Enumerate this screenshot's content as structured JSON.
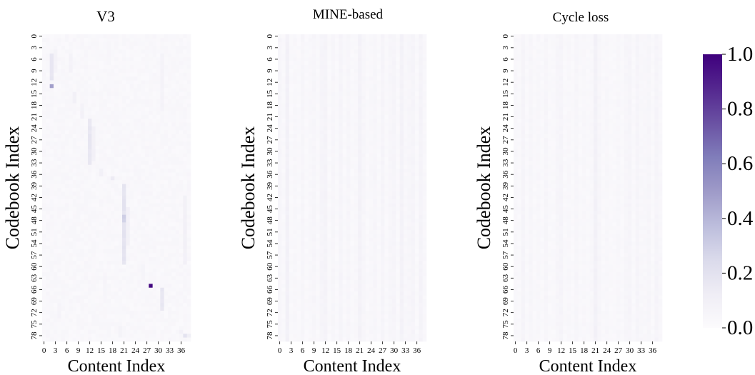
{
  "figure": {
    "colormap": [
      "#fcfbfd",
      "#efedf5",
      "#dadaeb",
      "#bcbddc",
      "#9e9ac8",
      "#807dba",
      "#6a51a3",
      "#54278f",
      "#3f007d"
    ]
  },
  "colorbar": {
    "ticks": [
      0.0,
      0.2,
      0.4,
      0.6,
      0.8,
      1.0
    ],
    "tick_labels": [
      "0.0",
      "0.2",
      "0.4",
      "0.6",
      "0.8",
      "1.0"
    ],
    "range": [
      0,
      1
    ]
  },
  "chart_data": [
    {
      "type": "heatmap",
      "title": "V3",
      "xlabel": "Content Index",
      "ylabel": "Codebook Index",
      "n_cols": 39,
      "n_rows": 80,
      "xtick_labels": [
        "0",
        "3",
        "6",
        "9",
        "12",
        "15",
        "18",
        "21",
        "24",
        "27",
        "30",
        "33",
        "36"
      ],
      "ytick_labels": [
        "0",
        "3",
        "6",
        "9",
        "12",
        "15",
        "18",
        "21",
        "24",
        "27",
        "30",
        "33",
        "36",
        "39",
        "42",
        "45",
        "48",
        "51",
        "54",
        "57",
        "60",
        "63",
        "66",
        "69",
        "72",
        "75",
        "78"
      ],
      "vmin": 0,
      "vmax": 1,
      "base_value": 0.02,
      "highlights": [
        {
          "x": 2,
          "y": [
            5,
            12
          ],
          "value": 0.18
        },
        {
          "x": 2,
          "y": [
            13,
            14
          ],
          "value": 0.55
        },
        {
          "x": 3,
          "y": [
            4,
            10
          ],
          "value": 0.08
        },
        {
          "x": 7,
          "y": [
            5,
            10
          ],
          "value": 0.08
        },
        {
          "x": 8,
          "y": [
            15,
            18
          ],
          "value": 0.1
        },
        {
          "x": 10,
          "y": [
            18,
            22
          ],
          "value": 0.09
        },
        {
          "x": 12,
          "y": [
            22,
            34
          ],
          "value": 0.18
        },
        {
          "x": 13,
          "y": [
            24,
            33
          ],
          "value": 0.1
        },
        {
          "x": 15,
          "y": [
            35,
            37
          ],
          "value": 0.1
        },
        {
          "x": 18,
          "y": [
            37,
            38
          ],
          "value": 0.15
        },
        {
          "x": 21,
          "y": [
            39,
            60
          ],
          "value": 0.2
        },
        {
          "x": 21,
          "y": [
            47,
            49
          ],
          "value": 0.32
        },
        {
          "x": 22,
          "y": [
            45,
            55
          ],
          "value": 0.1
        },
        {
          "x": 28,
          "y": [
            65,
            66
          ],
          "value": 1.0
        },
        {
          "x": 31,
          "y": [
            66,
            72
          ],
          "value": 0.18
        },
        {
          "x": 31,
          "y": [
            5,
            20
          ],
          "value": 0.08
        },
        {
          "x": 37,
          "y": [
            42,
            60
          ],
          "value": 0.1
        },
        {
          "x": 37,
          "y": [
            78,
            79
          ],
          "value": 0.22
        },
        {
          "x": 38,
          "y": [
            78,
            79
          ],
          "value": 0.12
        },
        {
          "x": 36,
          "y": [
            77,
            78
          ],
          "value": 0.1
        },
        {
          "x": 26,
          "y": [
            60,
            64
          ],
          "value": 0.07
        },
        {
          "x": 16,
          "y": [
            63,
            70
          ],
          "value": 0.06
        },
        {
          "x": 4,
          "y": [
            70,
            74
          ],
          "value": 0.07
        },
        {
          "x": 20,
          "y": [
            76,
            79
          ],
          "value": 0.08
        }
      ]
    },
    {
      "type": "heatmap",
      "title": "MINE-based",
      "xlabel": "Content Index",
      "ylabel": "Codebook Index",
      "n_cols": 39,
      "n_rows": 80,
      "xtick_labels": [
        "0",
        "3",
        "6",
        "9",
        "12",
        "15",
        "18",
        "21",
        "24",
        "27",
        "30",
        "33",
        "36"
      ],
      "ytick_labels": [
        "0",
        "3",
        "6",
        "9",
        "12",
        "15",
        "18",
        "21",
        "24",
        "27",
        "30",
        "33",
        "36",
        "39",
        "42",
        "45",
        "48",
        "51",
        "54",
        "57",
        "60",
        "63",
        "66",
        "69",
        "72",
        "75",
        "78"
      ],
      "vmin": 0,
      "vmax": 1,
      "base_value": 0.03,
      "column_values": [
        0.05,
        0.03,
        0.09,
        0.03,
        0.04,
        0.03,
        0.05,
        0.03,
        0.04,
        0.05,
        0.03,
        0.06,
        0.07,
        0.03,
        0.05,
        0.03,
        0.06,
        0.03,
        0.05,
        0.03,
        0.04,
        0.08,
        0.05,
        0.03,
        0.04,
        0.05,
        0.03,
        0.06,
        0.03,
        0.05,
        0.06,
        0.03,
        0.08,
        0.04,
        0.05,
        0.06,
        0.03,
        0.07,
        0.04
      ]
    },
    {
      "type": "heatmap",
      "title": "Cycle loss",
      "xlabel": "Content Index",
      "ylabel": "Codebook Index",
      "n_cols": 39,
      "n_rows": 80,
      "xtick_labels": [
        "0",
        "3",
        "6",
        "9",
        "12",
        "15",
        "18",
        "21",
        "24",
        "27",
        "30",
        "33",
        "36"
      ],
      "ytick_labels": [
        "0",
        "3",
        "6",
        "9",
        "12",
        "15",
        "18",
        "21",
        "24",
        "27",
        "30",
        "33",
        "36",
        "39",
        "42",
        "45",
        "48",
        "51",
        "54",
        "57",
        "60",
        "63",
        "66",
        "69",
        "72",
        "75",
        "78"
      ],
      "vmin": 0,
      "vmax": 1,
      "base_value": 0.03,
      "column_values": [
        0.04,
        0.03,
        0.06,
        0.03,
        0.05,
        0.03,
        0.04,
        0.03,
        0.05,
        0.03,
        0.03,
        0.05,
        0.06,
        0.03,
        0.04,
        0.03,
        0.05,
        0.03,
        0.04,
        0.03,
        0.04,
        0.09,
        0.05,
        0.03,
        0.04,
        0.03,
        0.03,
        0.04,
        0.03,
        0.05,
        0.06,
        0.03,
        0.06,
        0.04,
        0.04,
        0.05,
        0.03,
        0.06,
        0.04
      ]
    }
  ]
}
